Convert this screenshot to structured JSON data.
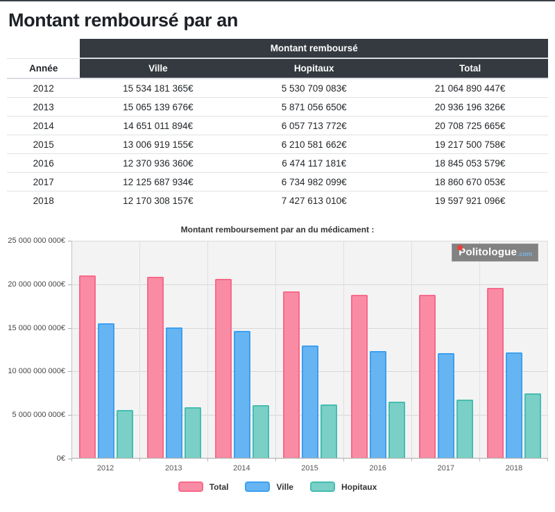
{
  "page": {
    "title": "Montant remboursé par an"
  },
  "table": {
    "span_header": "Montant remboursé",
    "col_year": "Année",
    "columns": [
      "Ville",
      "Hopitaux",
      "Total"
    ],
    "rows": [
      [
        "2012",
        "15 534 181 365€",
        "5 530 709 083€",
        "21 064 890 447€"
      ],
      [
        "2013",
        "15 065 139 676€",
        "5 871 056 650€",
        "20 936 196 326€"
      ],
      [
        "2014",
        "14 651 011 894€",
        "6 057 713 772€",
        "20 708 725 665€"
      ],
      [
        "2015",
        "13 006 919 155€",
        "6 210 581 662€",
        "19 217 500 758€"
      ],
      [
        "2016",
        "12 370 936 360€",
        "6 474 117 181€",
        "18 845 053 579€"
      ],
      [
        "2017",
        "12 125 687 934€",
        "6 734 982 099€",
        "18 860 670 053€"
      ],
      [
        "2018",
        "12 170 308 157€",
        "7 427 613 010€",
        "19 597 921 096€"
      ]
    ],
    "header_bg": "#343a40"
  },
  "chart_data": {
    "type": "bar",
    "title": "Montant remboursement par an du médicament :",
    "categories": [
      "2012",
      "2013",
      "2014",
      "2015",
      "2016",
      "2017",
      "2018"
    ],
    "series": [
      {
        "name": "Total",
        "fill": "#f98ca4",
        "border": "#f7698a",
        "values": [
          21064890447,
          20936196326,
          20708725665,
          19217500758,
          18845053579,
          18860670053,
          19597921096
        ]
      },
      {
        "name": "Ville",
        "fill": "#66b5f2",
        "border": "#3d9ff0",
        "values": [
          15534181365,
          15065139676,
          14651011894,
          13006919155,
          12370936360,
          12125687934,
          12170308157
        ]
      },
      {
        "name": "Hopitaux",
        "fill": "#7ad0c6",
        "border": "#46bdb1",
        "values": [
          5530709083,
          5871056650,
          6057713772,
          6210581662,
          6474117181,
          6734982099,
          7427613010
        ]
      }
    ],
    "ylim": [
      0,
      25000000000
    ],
    "ytick_step": 5000000000,
    "ytick_labels": [
      "0€",
      "5 000 000 000€",
      "10 000 000 000€",
      "15 000 000 000€",
      "20 000 000 000€",
      "25 000 000 000€"
    ],
    "grid": true,
    "legend_position": "bottom"
  },
  "watermark": {
    "brand": "Politologue",
    "tld": ".com",
    "dot_color": "#e8413c",
    "tld_color": "#7ab5e8"
  }
}
